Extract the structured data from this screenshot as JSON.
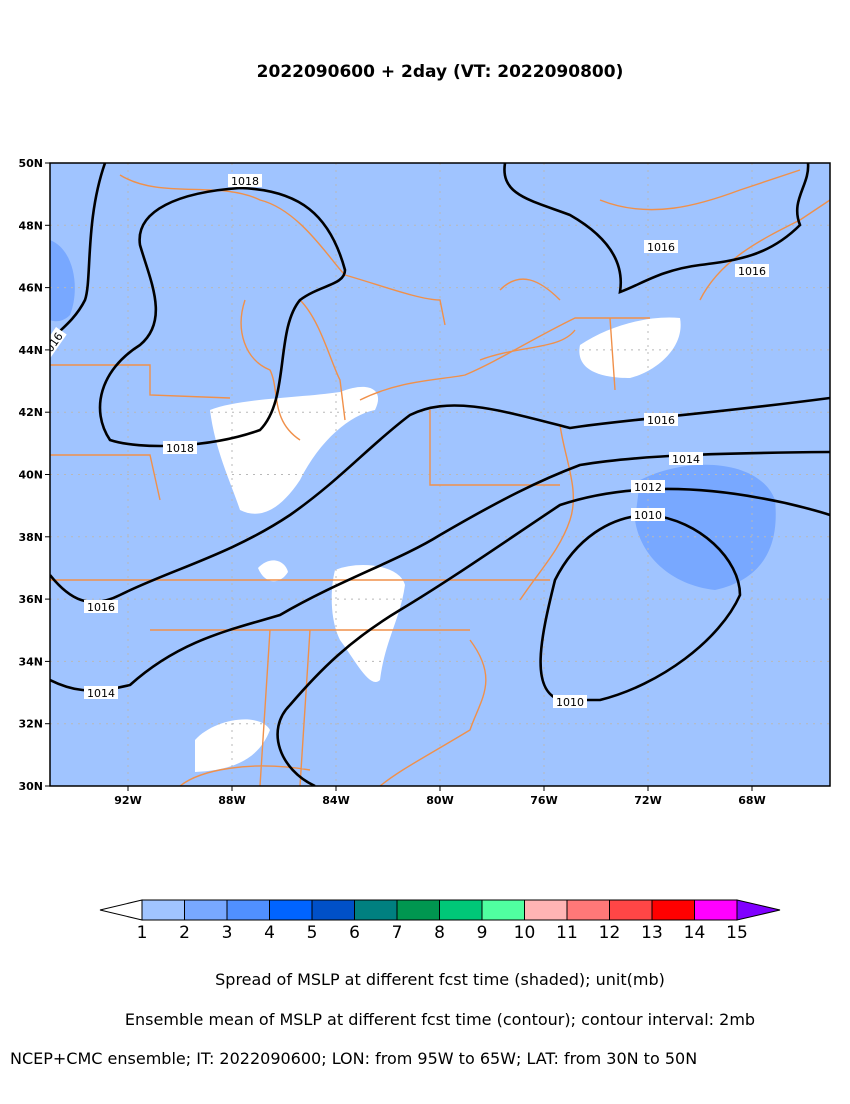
{
  "title": "2022090600 + 2day (VT: 2022090800)",
  "map": {
    "lon_range": [
      -95,
      -65
    ],
    "lat_range": [
      30,
      50
    ],
    "lon_ticks": [
      {
        "value": -92,
        "label": "92W"
      },
      {
        "value": -88,
        "label": "88W"
      },
      {
        "value": -84,
        "label": "84W"
      },
      {
        "value": -80,
        "label": "80W"
      },
      {
        "value": -76,
        "label": "76W"
      },
      {
        "value": -72,
        "label": "72W"
      },
      {
        "value": -68,
        "label": "68W"
      }
    ],
    "lat_ticks": [
      {
        "value": 30,
        "label": "30N"
      },
      {
        "value": 32,
        "label": "32N"
      },
      {
        "value": 34,
        "label": "34N"
      },
      {
        "value": 36,
        "label": "36N"
      },
      {
        "value": 38,
        "label": "38N"
      },
      {
        "value": 40,
        "label": "40N"
      },
      {
        "value": 42,
        "label": "42N"
      },
      {
        "value": 44,
        "label": "44N"
      },
      {
        "value": 46,
        "label": "46N"
      },
      {
        "value": 48,
        "label": "48N"
      },
      {
        "value": 50,
        "label": "50N"
      }
    ],
    "contour_labels": [
      1018,
      1018,
      1016,
      1014,
      1016,
      1016,
      1016,
      1014,
      1012,
      1010,
      1010,
      1016
    ]
  },
  "colorbar": {
    "levels": [
      1,
      2,
      3,
      4,
      5,
      6,
      7,
      8,
      9,
      10,
      11,
      12,
      13,
      14,
      15
    ],
    "colors": [
      "#ffffff",
      "#a0c4ff",
      "#78a8ff",
      "#5090ff",
      "#0064ff",
      "#0050c8",
      "#008080",
      "#009650",
      "#00c878",
      "#50ffa0",
      "#ffb4b4",
      "#ff7878",
      "#ff4646",
      "#ff0000",
      "#ff00ff",
      "#8000ff"
    ]
  },
  "captions": [
    "Spread of MSLP at different fcst time (shaded); unit(mb)",
    "Ensemble mean of MSLP at different fcst time (contour); contour interval: 2mb",
    "NCEP+CMC ensemble; IT: 2022090600; LON: from 95W to 65W; LAT: from 30N to 50N"
  ]
}
